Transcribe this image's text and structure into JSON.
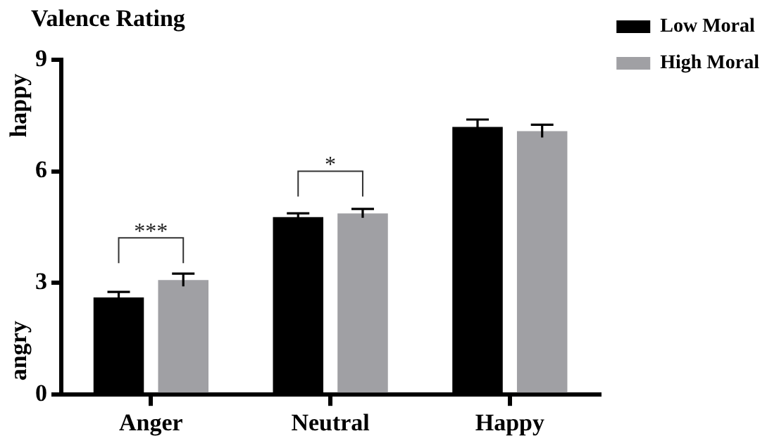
{
  "chart_data": {
    "type": "bar",
    "title": "Valence Rating",
    "categories": [
      "Anger",
      "Neutral",
      "Happy"
    ],
    "series": [
      {
        "name": "Low Moral",
        "color": "#000000",
        "values": [
          2.61,
          4.77,
          7.19
        ],
        "errors": [
          0.15,
          0.1,
          0.2
        ]
      },
      {
        "name": "High Moral",
        "color": "#a0a0a4",
        "values": [
          3.08,
          4.87,
          7.08
        ],
        "errors": [
          0.17,
          0.12,
          0.17
        ]
      }
    ],
    "ylim": [
      0,
      9
    ],
    "yticks": [
      0,
      3,
      6,
      9
    ],
    "grid": false,
    "legend": "top right",
    "annotations": [
      "happy",
      "angry",
      "***",
      "*"
    ]
  }
}
